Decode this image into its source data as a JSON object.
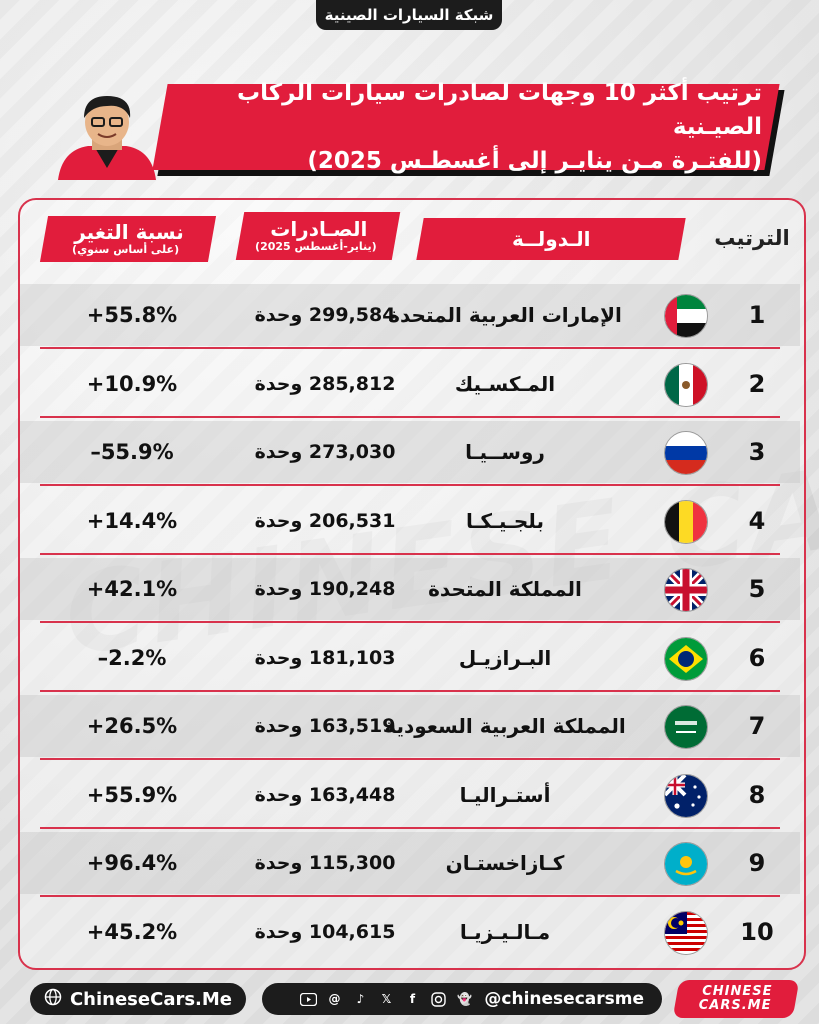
{
  "top_tab": "شبكة السيارات الصينية",
  "title": {
    "line1": "ترتيب أكثر 10 وجهات لصادرات سيارات الركاب الصيـنية",
    "line2": "(للفتـرة مـن ينايـر إلى أغسطـس 2025)"
  },
  "headers": {
    "rank": "الترتيب",
    "country": "الـدولــة",
    "exports": "الصـادرات",
    "exports_sub": "(يناير-أغسطس 2025)",
    "change": "نسبة التغير",
    "change_sub": "(على أساس سنوي)"
  },
  "rows": [
    {
      "rank": "1",
      "country": "الإمارات العربية المتحدة",
      "exports": "299,584 وحدة",
      "change": "+55.8%",
      "flag": "uae-flag"
    },
    {
      "rank": "2",
      "country": "المـكسـيك",
      "exports": "285,812 وحدة",
      "change": "+10.9%",
      "flag": "mexico-flag"
    },
    {
      "rank": "3",
      "country": "روســيـا",
      "exports": "273,030 وحدة",
      "change": "–55.9%",
      "flag": "russia-flag"
    },
    {
      "rank": "4",
      "country": "بلجـيـكـا",
      "exports": "206,531 وحدة",
      "change": "+14.4%",
      "flag": "belgium-flag"
    },
    {
      "rank": "5",
      "country": "المملكة المتحدة",
      "exports": "190,248 وحدة",
      "change": "+42.1%",
      "flag": "uk-flag"
    },
    {
      "rank": "6",
      "country": "البـرازيـل",
      "exports": "181,103 وحدة",
      "change": "–2.2%",
      "flag": "brazil-flag"
    },
    {
      "rank": "7",
      "country": "المملكة العربية السعودية",
      "exports": "163,519 وحدة",
      "change": "+26.5%",
      "flag": "saudi-flag"
    },
    {
      "rank": "8",
      "country": "أستـراليـا",
      "exports": "163,448 وحدة",
      "change": "+55.9%",
      "flag": "australia-flag"
    },
    {
      "rank": "9",
      "country": "كـازاخستـان",
      "exports": "115,300 وحدة",
      "change": "+96.4%",
      "flag": "kazakhstan-flag"
    },
    {
      "rank": "10",
      "country": "مـالـيـزيـا",
      "exports": "104,615 وحدة",
      "change": "+45.2%",
      "flag": "malaysia-flag"
    }
  ],
  "watermark": "CHINESE CARS.ME",
  "footer": {
    "website": "ChineseCars.Me",
    "handle": "@chinesecarsme",
    "social_icons": [
      "youtube-icon",
      "threads-icon",
      "tiktok-icon",
      "x-icon",
      "facebook-icon",
      "instagram-icon",
      "snapchat-icon"
    ],
    "logo_line1": "CHINESE",
    "logo_line2": "CARS.ME"
  },
  "colors": {
    "accent": "#e11d3c",
    "dark": "#1c1c1c",
    "background": "#ececec"
  }
}
